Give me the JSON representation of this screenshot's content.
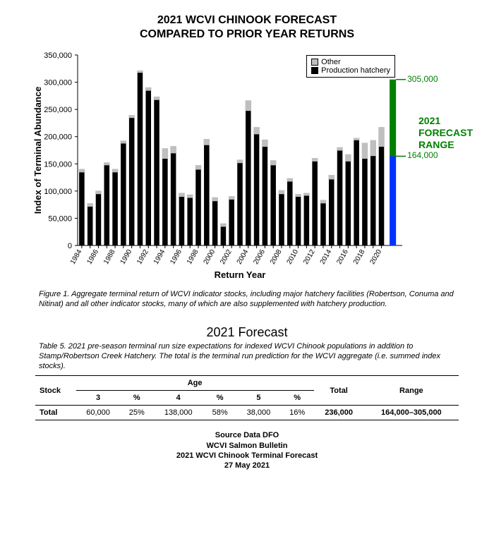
{
  "chart": {
    "title_line1": "2021 WCVI CHINOOK FORECAST",
    "title_line2": "COMPARED TO PRIOR YEAR RETURNS",
    "ylabel": "Index of Terminal Abundance",
    "xlabel": "Return Year",
    "ylim": [
      0,
      350000
    ],
    "ytick_step": 50000,
    "yticks": [
      "0",
      "50,000",
      "100,000",
      "150,000",
      "200,000",
      "250,000",
      "300,000",
      "350,000"
    ],
    "years": [
      1984,
      1985,
      1986,
      1987,
      1988,
      1989,
      1990,
      1991,
      1992,
      1993,
      1994,
      1995,
      1996,
      1997,
      1998,
      1999,
      2000,
      2001,
      2002,
      2003,
      2004,
      2005,
      2006,
      2007,
      2008,
      2009,
      2010,
      2011,
      2012,
      2013,
      2014,
      2015,
      2016,
      2017,
      2018,
      2019,
      2020
    ],
    "production": [
      135000,
      72000,
      95000,
      148000,
      135000,
      188000,
      235000,
      318000,
      285000,
      268000,
      160000,
      170000,
      90000,
      88000,
      140000,
      185000,
      82000,
      35000,
      85000,
      152000,
      248000,
      205000,
      182000,
      148000,
      95000,
      118000,
      90000,
      92000,
      155000,
      78000,
      122000,
      175000,
      155000,
      194000,
      160000,
      165000,
      182000
    ],
    "other": [
      5000,
      5000,
      5000,
      4000,
      5000,
      4000,
      4000,
      3000,
      5000,
      5000,
      18000,
      12000,
      6000,
      5000,
      7000,
      10000,
      6000,
      5000,
      5000,
      5000,
      18000,
      12000,
      12000,
      8000,
      6000,
      5000,
      4000,
      4000,
      5000,
      5000,
      7000,
      5000,
      12000,
      3000,
      28000,
      28000,
      35000
    ],
    "legend": {
      "other": "Other",
      "prod": "Production hatchery"
    },
    "forecast_low": 164000,
    "forecast_high": 305000,
    "forecast_low_label": "164,000",
    "forecast_high_label": "305,000",
    "forecast_label_l1": "2021",
    "forecast_label_l2": "FORECAST",
    "forecast_label_l3": "RANGE",
    "colors": {
      "prod": "#000000",
      "other": "#bfbfbf",
      "axis": "#000000",
      "forecast_blue": "#0033ff",
      "forecast_green": "#008000",
      "tick_grey": "#999999"
    },
    "bar_width_ratio": 0.64
  },
  "figure_caption": {
    "label": "Figure 1.",
    "text": " Aggregate terminal return of WCVI indicator stocks, including major hatchery facilities (Robertson, Conuma and Nitinat) and all other indicator stocks, many of which are also supplemented with hatchery production."
  },
  "forecast_heading": "2021 Forecast",
  "table_caption": {
    "label": "Table 5.",
    "text": " 2021 pre-season terminal run size expectations for indexed WCVI Chinook populations in addition to Stamp/Robertson Creek Hatchery. The total is the terminal run prediction for the WCVI aggregate (i.e. summed index stocks)."
  },
  "table": {
    "headers": {
      "stock": "Stock",
      "age": "Age",
      "a3": "3",
      "p3": "%",
      "a4": "4",
      "p4": "%",
      "a5": "5",
      "p5": "%",
      "total": "Total",
      "range": "Range"
    },
    "row": {
      "stock": "Total",
      "a3": "60,000",
      "p3": "25%",
      "a4": "138,000",
      "p4": "58%",
      "a5": "38,000",
      "p5": "16%",
      "total": "236,000",
      "range": "164,000–305,000"
    }
  },
  "footer": {
    "l1": "Source Data DFO",
    "l2": "WCVI Salmon Bulletin",
    "l3": "2021 WCVI Chinook Terminal Forecast",
    "l4": "27 May 2021"
  }
}
